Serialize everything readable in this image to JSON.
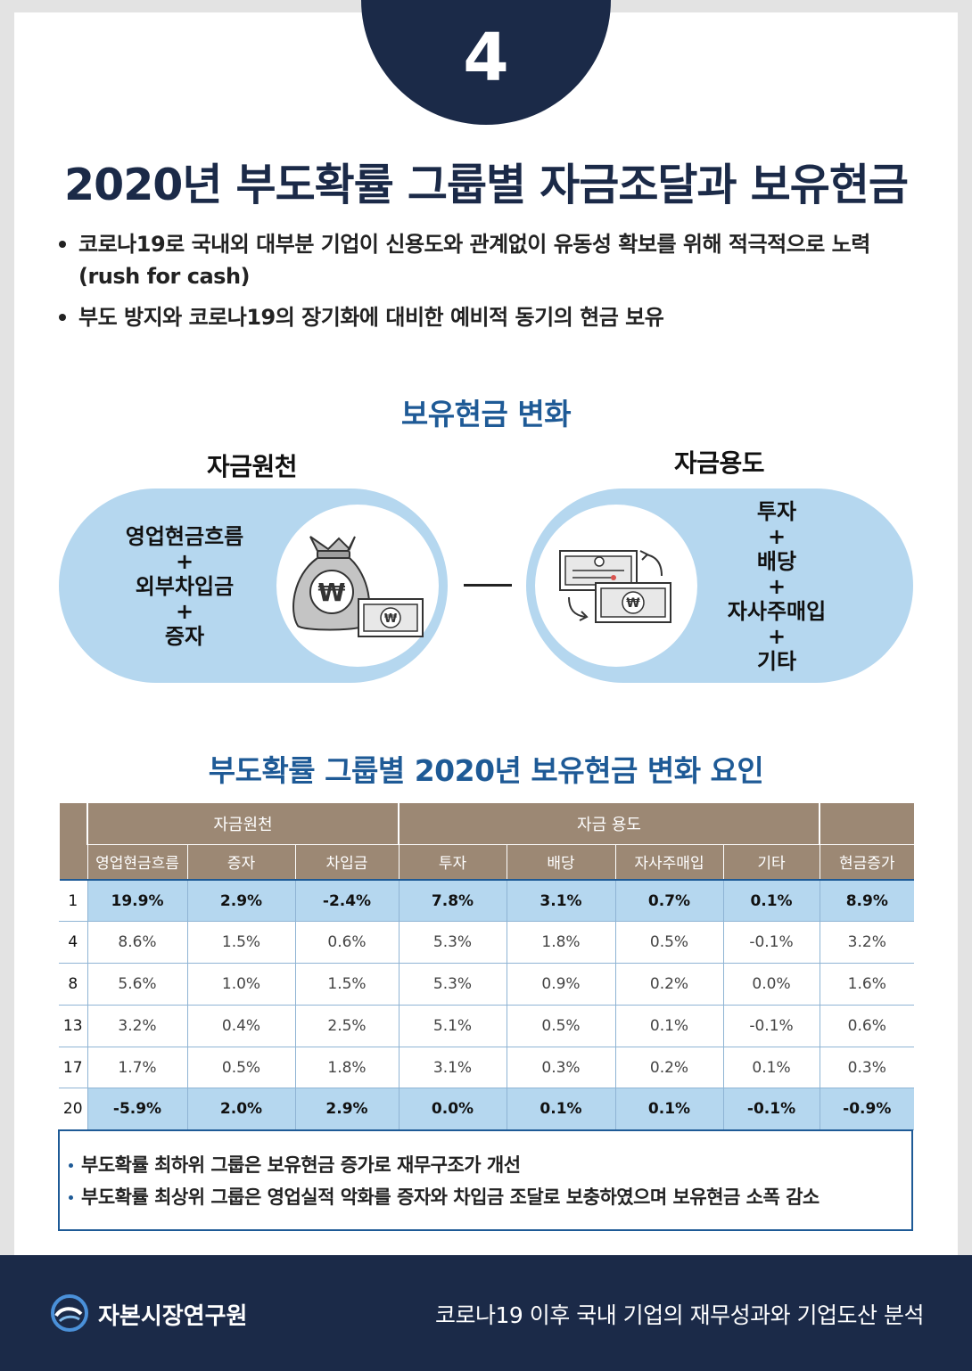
{
  "page": {
    "number": "4",
    "title": "2020년 부도확률 그룹별 자금조달과 보유현금"
  },
  "bullets": [
    "코로나19로 국내외 대부분 기업이 신용도와 관계없이 유동성 확보를 위해 적극적으로 노력 (rush for cash)",
    "부도 방지와 코로나19의 장기화에 대비한 예비적 동기의 현금 보유"
  ],
  "diagram": {
    "title": "보유현금 변화",
    "source": {
      "heading": "자금원천",
      "items": [
        "영업현금흐름",
        "+",
        "외부차입금",
        "+",
        "증자"
      ],
      "icon": "money-bag-icon"
    },
    "usage": {
      "heading": "자금용도",
      "items": [
        "투자",
        "+",
        "배당",
        "+",
        "자사주매입",
        "+",
        "기타"
      ],
      "icon": "certificate-exchange-icon"
    },
    "won_symbol": "₩"
  },
  "table": {
    "title": "부도확률 그룹별 2020년 보유현금 변화 요인",
    "group_headers": [
      "자금원천",
      "자금 용도",
      ""
    ],
    "columns": [
      "영업현금흐름",
      "증자",
      "차입금",
      "투자",
      "배당",
      "자사주매입",
      "기타",
      "현금증가"
    ],
    "rows": [
      {
        "id": "1",
        "values": [
          "19.9%",
          "2.9%",
          "-2.4%",
          "7.8%",
          "3.1%",
          "0.7%",
          "0.1%",
          "8.9%"
        ],
        "highlight": true
      },
      {
        "id": "4",
        "values": [
          "8.6%",
          "1.5%",
          "0.6%",
          "5.3%",
          "1.8%",
          "0.5%",
          "-0.1%",
          "3.2%"
        ],
        "highlight": false
      },
      {
        "id": "8",
        "values": [
          "5.6%",
          "1.0%",
          "1.5%",
          "5.3%",
          "0.9%",
          "0.2%",
          "0.0%",
          "1.6%"
        ],
        "highlight": false
      },
      {
        "id": "13",
        "values": [
          "3.2%",
          "0.4%",
          "2.5%",
          "5.1%",
          "0.5%",
          "0.1%",
          "-0.1%",
          "0.6%"
        ],
        "highlight": false
      },
      {
        "id": "17",
        "values": [
          "1.7%",
          "0.5%",
          "1.8%",
          "3.1%",
          "0.3%",
          "0.2%",
          "0.1%",
          "0.3%"
        ],
        "highlight": false
      },
      {
        "id": "20",
        "values": [
          "-5.9%",
          "2.0%",
          "2.9%",
          "0.0%",
          "0.1%",
          "0.1%",
          "-0.1%",
          "-0.9%"
        ],
        "highlight": true
      }
    ]
  },
  "notes": [
    "부도확률 최하위 그룹은 보유현금 증가로 재무구조가 개선",
    "부도확률 최상위 그룹은 영업실적 악화를 증자와 차입금 조달로 보충하였으며 보유현금 소폭 감소"
  ],
  "footer": {
    "org_name": "자본시장연구원",
    "report_title": "코로나19 이후 국내 기업의 재무성과와 기업도산 분석"
  },
  "colors": {
    "navy": "#1b2a48",
    "accent_blue": "#1e5a96",
    "light_blue": "#b5d7ef",
    "table_header": "#9c8874"
  }
}
